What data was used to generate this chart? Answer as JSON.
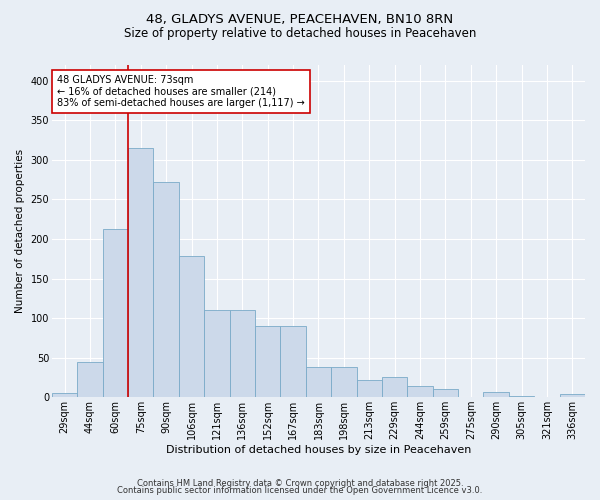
{
  "title_line1": "48, GLADYS AVENUE, PEACEHAVEN, BN10 8RN",
  "title_line2": "Size of property relative to detached houses in Peacehaven",
  "xlabel": "Distribution of detached houses by size in Peacehaven",
  "ylabel": "Number of detached properties",
  "categories": [
    "29sqm",
    "44sqm",
    "60sqm",
    "75sqm",
    "90sqm",
    "106sqm",
    "121sqm",
    "136sqm",
    "152sqm",
    "167sqm",
    "183sqm",
    "198sqm",
    "213sqm",
    "229sqm",
    "244sqm",
    "259sqm",
    "275sqm",
    "290sqm",
    "305sqm",
    "321sqm",
    "336sqm"
  ],
  "values": [
    5,
    44,
    213,
    315,
    272,
    178,
    110,
    110,
    90,
    90,
    38,
    38,
    22,
    25,
    14,
    10,
    0,
    6,
    2,
    0,
    4
  ],
  "bar_color": "#ccd9ea",
  "bar_edge_color": "#7aaac8",
  "bg_color": "#e8eef5",
  "grid_color": "#ffffff",
  "vline_x": 2.5,
  "vline_color": "#cc0000",
  "annotation_text": "48 GLADYS AVENUE: 73sqm\n← 16% of detached houses are smaller (214)\n83% of semi-detached houses are larger (1,117) →",
  "annotation_box_color": "#ffffff",
  "annotation_box_edge": "#cc0000",
  "footer_line1": "Contains HM Land Registry data © Crown copyright and database right 2025.",
  "footer_line2": "Contains public sector information licensed under the Open Government Licence v3.0.",
  "ylim": [
    0,
    420
  ],
  "yticks": [
    0,
    50,
    100,
    150,
    200,
    250,
    300,
    350,
    400
  ],
  "title1_fontsize": 9.5,
  "title2_fontsize": 8.5,
  "ylabel_fontsize": 7.5,
  "xlabel_fontsize": 8.0,
  "tick_fontsize": 7.0,
  "annotation_fontsize": 7.0,
  "footer_fontsize": 6.0
}
